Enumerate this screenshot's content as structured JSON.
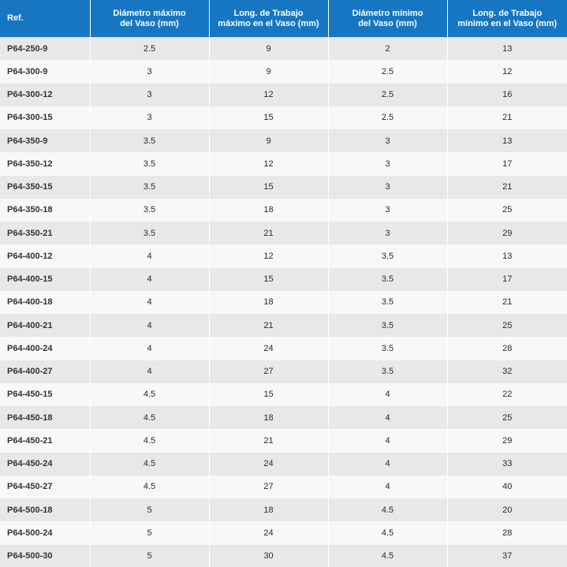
{
  "table": {
    "headers": [
      [
        "Ref."
      ],
      [
        "Diámetro máximo",
        "del Vaso (mm)"
      ],
      [
        "Long. de Trabajo",
        "máximo en el Vaso (mm)"
      ],
      [
        "Diámetro mínimo",
        "del Vaso (mm)"
      ],
      [
        "Long. de Trabajo",
        "mínimo en el Vaso (mm)"
      ]
    ],
    "rows": [
      [
        "P64-250-9",
        "2.5",
        "9",
        "2",
        "13"
      ],
      [
        "P64-300-9",
        "3",
        "9",
        "2.5",
        "12"
      ],
      [
        "P64-300-12",
        "3",
        "12",
        "2.5",
        "16"
      ],
      [
        "P64-300-15",
        "3",
        "15",
        "2.5",
        "21"
      ],
      [
        "P64-350-9",
        "3.5",
        "9",
        "3",
        "13"
      ],
      [
        "P64-350-12",
        "3.5",
        "12",
        "3",
        "17"
      ],
      [
        "P64-350-15",
        "3.5",
        "15",
        "3",
        "21"
      ],
      [
        "P64-350-18",
        "3.5",
        "18",
        "3",
        "25"
      ],
      [
        "P64-350-21",
        "3.5",
        "21",
        "3",
        "29"
      ],
      [
        "P64-400-12",
        "4",
        "12",
        "3.5",
        "13"
      ],
      [
        "P64-400-15",
        "4",
        "15",
        "3.5",
        "17"
      ],
      [
        "P64-400-18",
        "4",
        "18",
        "3.5",
        "21"
      ],
      [
        "P64-400-21",
        "4",
        "21",
        "3.5",
        "25"
      ],
      [
        "P64-400-24",
        "4",
        "24",
        "3.5",
        "28"
      ],
      [
        "P64-400-27",
        "4",
        "27",
        "3.5",
        "32"
      ],
      [
        "P64-450-15",
        "4.5",
        "15",
        "4",
        "22"
      ],
      [
        "P64-450-18",
        "4.5",
        "18",
        "4",
        "25"
      ],
      [
        "P64-450-21",
        "4.5",
        "21",
        "4",
        "29"
      ],
      [
        "P64-450-24",
        "4.5",
        "24",
        "4",
        "33"
      ],
      [
        "P64-450-27",
        "4.5",
        "27",
        "4",
        "40"
      ],
      [
        "P64-500-18",
        "5",
        "18",
        "4.5",
        "20"
      ],
      [
        "P64-500-24",
        "5",
        "24",
        "4.5",
        "28"
      ],
      [
        "P64-500-30",
        "5",
        "30",
        "4.5",
        "37"
      ]
    ]
  },
  "colors": {
    "header_background": "#1776c2",
    "header_text": "#ffffff",
    "row_odd": "#e8e8e8",
    "row_even": "#f8f8f8"
  }
}
